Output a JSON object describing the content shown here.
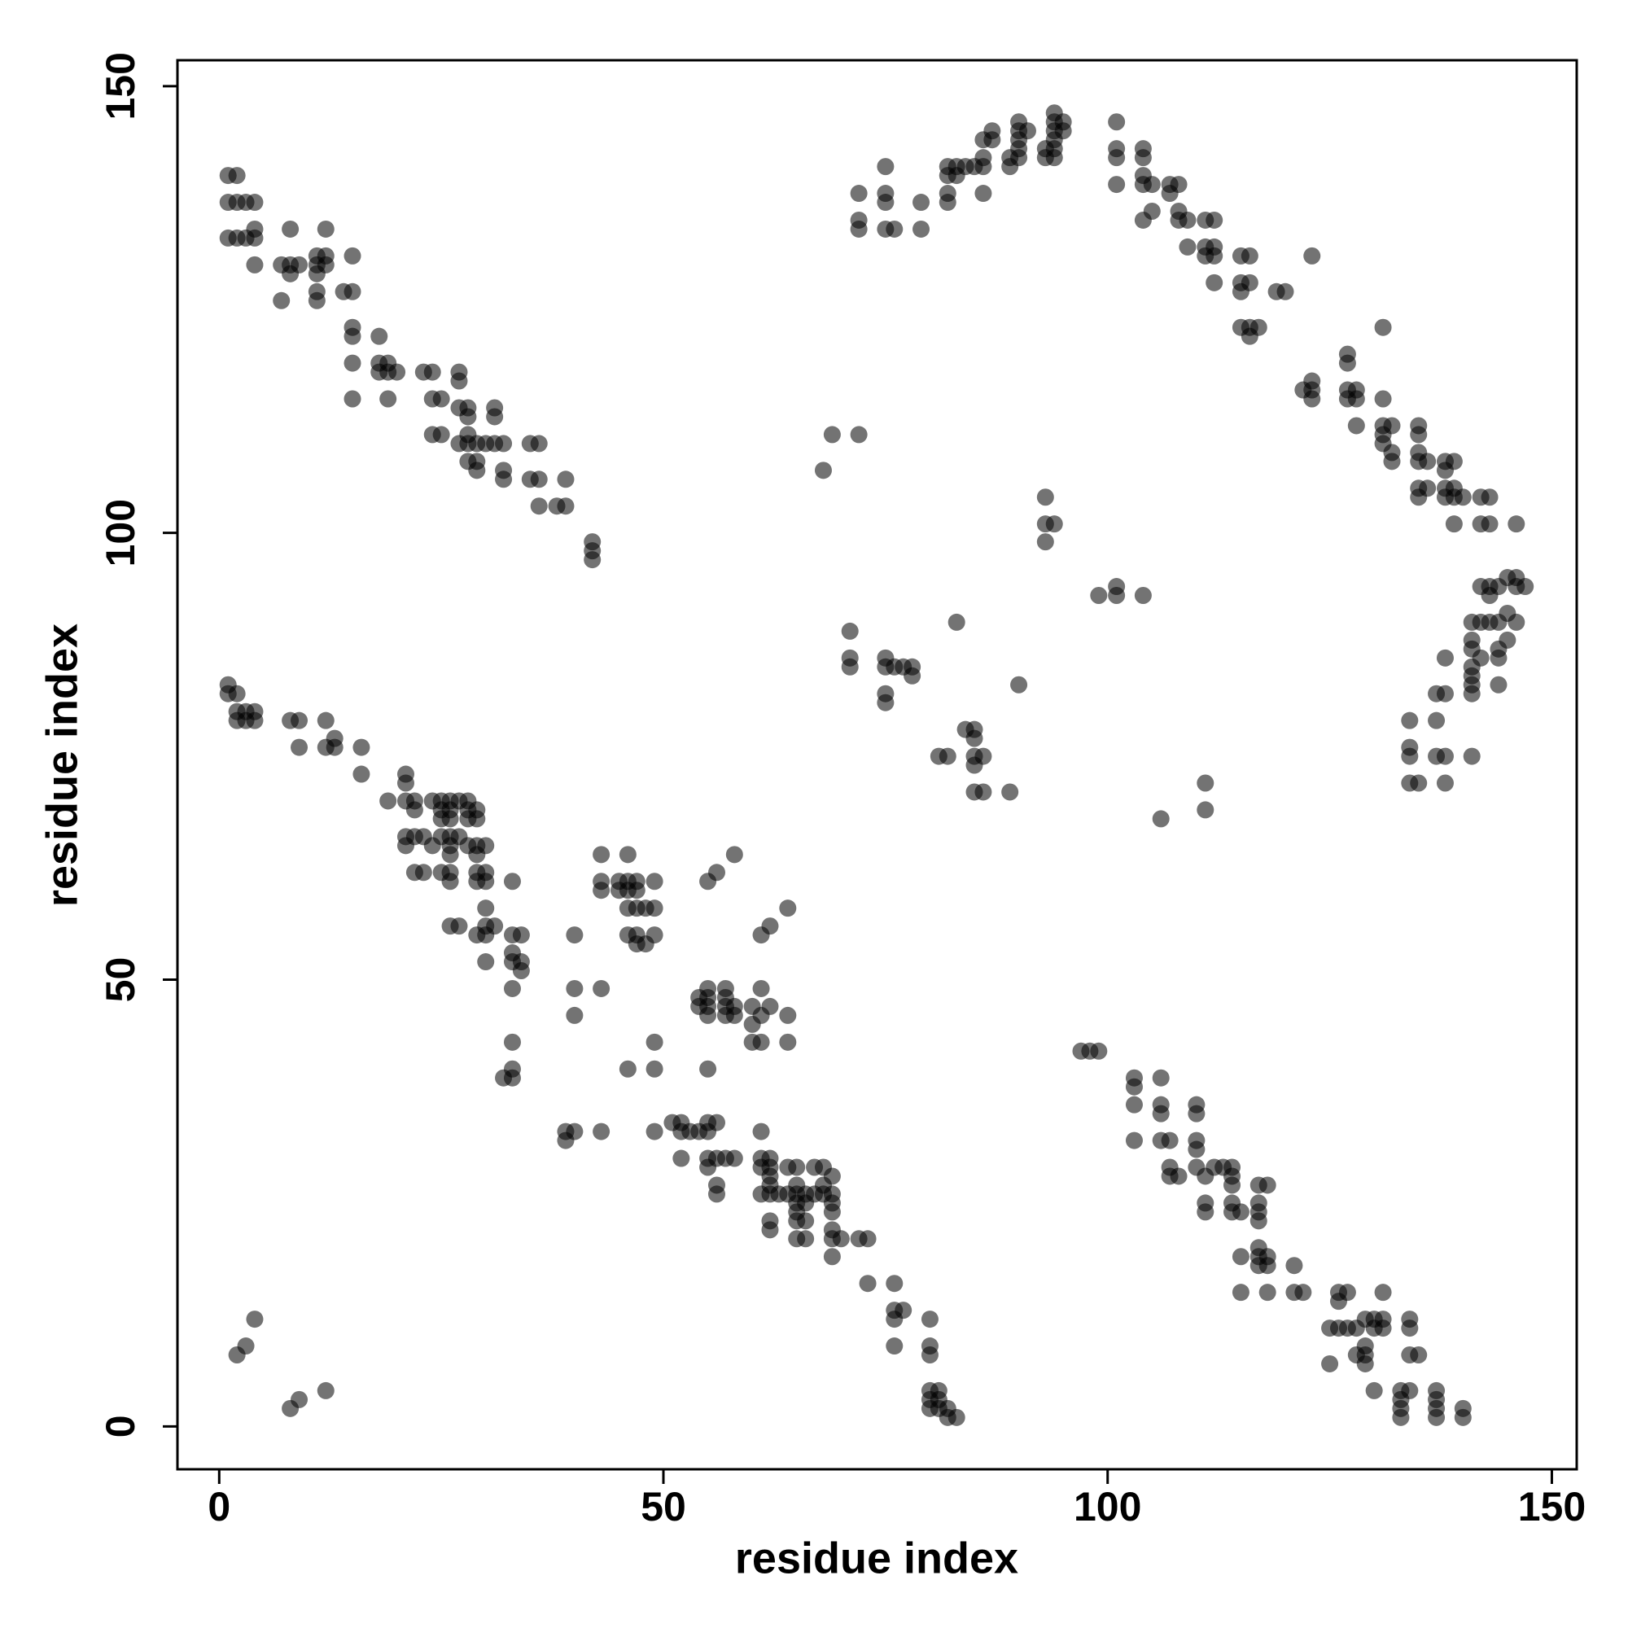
{
  "chart_data": {
    "type": "scatter",
    "xlabel": "residue index",
    "ylabel": "residue index",
    "xlim": [
      -4.7,
      152.8
    ],
    "ylim": [
      -4.8,
      152.9
    ],
    "xticks": [
      0,
      50,
      100,
      150
    ],
    "yticks": [
      0,
      50,
      100,
      150
    ],
    "color": "#000000",
    "marker_opacity": 0.55,
    "x": [
      1,
      2,
      1,
      2,
      3,
      4,
      1,
      2,
      3,
      4,
      4,
      8,
      12,
      4,
      7,
      8,
      9,
      11,
      12,
      11,
      12,
      15,
      8,
      11,
      11,
      14,
      15,
      7,
      11,
      15,
      15,
      18,
      15,
      18,
      19,
      18,
      19,
      20,
      23,
      24,
      27,
      27,
      15,
      19,
      24,
      25,
      27,
      28,
      31,
      28,
      31,
      24,
      25,
      28,
      27,
      28,
      29,
      30,
      31,
      32,
      35,
      36,
      28,
      29,
      29,
      32,
      32,
      35,
      36,
      39,
      36,
      38,
      39,
      42,
      42,
      42,
      1,
      1,
      2,
      2,
      3,
      4,
      2,
      3,
      4,
      8,
      9,
      12,
      9,
      12,
      13,
      16,
      13,
      16,
      21,
      21,
      19,
      21,
      22,
      24,
      25,
      26,
      27,
      28,
      22,
      25,
      26,
      28,
      29,
      25,
      26,
      28,
      29,
      21,
      22,
      23,
      25,
      26,
      27,
      21,
      24,
      26,
      28,
      29,
      30,
      26,
      29,
      22,
      23,
      25,
      26,
      29,
      30,
      26,
      29,
      30,
      33,
      30,
      26,
      27,
      30,
      31,
      29,
      30,
      33,
      34,
      33,
      30,
      33,
      34,
      34,
      33,
      33,
      33,
      32,
      33,
      43,
      46,
      58,
      43,
      45,
      46,
      47,
      49,
      55,
      56,
      43,
      45,
      46,
      47,
      46,
      47,
      48,
      49,
      64,
      62,
      40,
      46,
      47,
      49,
      61,
      47,
      48,
      40,
      43,
      55,
      57,
      61,
      54,
      55,
      57,
      54,
      55,
      57,
      58,
      60,
      62,
      40,
      55,
      57,
      58,
      61,
      64,
      60,
      49,
      60,
      61,
      64,
      46,
      49,
      55,
      39,
      40,
      43,
      49,
      52,
      53,
      54,
      55,
      61,
      39,
      51,
      52,
      55,
      56,
      52,
      55,
      56,
      57,
      58,
      61,
      62,
      55,
      61,
      62,
      64,
      65,
      67,
      68,
      62,
      69,
      56,
      62,
      65,
      68,
      56,
      61,
      62,
      63,
      64,
      65,
      66,
      67,
      68,
      69,
      65,
      66,
      69,
      65,
      69,
      62,
      65,
      66,
      62,
      69,
      65,
      66,
      69,
      70,
      72,
      73,
      69,
      73,
      76,
      76,
      77,
      76,
      80,
      76,
      80,
      80,
      80,
      81,
      80,
      81,
      80,
      81,
      82,
      82,
      83,
      4,
      3,
      2,
      9,
      8,
      12,
      101,
      101,
      104,
      101,
      104,
      104,
      101,
      104,
      105,
      107,
      108,
      107,
      105,
      108,
      104,
      108,
      109,
      111,
      112,
      109,
      111,
      112,
      111,
      112,
      115,
      116,
      123,
      112,
      115,
      116,
      115,
      119,
      120,
      115,
      116,
      117,
      131,
      116,
      123,
      122,
      123,
      127,
      128,
      123,
      127,
      128,
      131,
      127,
      127,
      128,
      131,
      132,
      135,
      131,
      135,
      131,
      132,
      135,
      132,
      135,
      136,
      138,
      139,
      138,
      135,
      136,
      138,
      139,
      135,
      138,
      139,
      140,
      142,
      143,
      139,
      142,
      143,
      146,
      142,
      143,
      144,
      146,
      147,
      145,
      146,
      143,
      145,
      141,
      142,
      143,
      144,
      146,
      141,
      145,
      141,
      144,
      138,
      142,
      144,
      141,
      141,
      141,
      144,
      137,
      138,
      141,
      134,
      137,
      134,
      134,
      137,
      138,
      141,
      134,
      135,
      138,
      72,
      75,
      82,
      86,
      72,
      72,
      75,
      76,
      79,
      75,
      82,
      83,
      84,
      85,
      86,
      89,
      75,
      79,
      82,
      82,
      83,
      86,
      87,
      90,
      94,
      86,
      89,
      90,
      93,
      94,
      87,
      90,
      91,
      94,
      95,
      90,
      94,
      95,
      90,
      93,
      94,
      94,
      68,
      69,
      72,
      93,
      93,
      94,
      93,
      99,
      101,
      104,
      101,
      71,
      71,
      75,
      71,
      75,
      76,
      77,
      78,
      78,
      75,
      75,
      83,
      90,
      81,
      82,
      85,
      86,
      84,
      85,
      85,
      85,
      85,
      86,
      89,
      106,
      111,
      111,
      97,
      98,
      99,
      103,
      106,
      103,
      103,
      106,
      110,
      106,
      110,
      103,
      106,
      107,
      110,
      110,
      107,
      110,
      112,
      113,
      114,
      107,
      108,
      111,
      114,
      114,
      117,
      118,
      111,
      114,
      117,
      111,
      114,
      115,
      117,
      117,
      117,
      115,
      117,
      118,
      117,
      118,
      121,
      115,
      118,
      121,
      122,
      126,
      127,
      131,
      126,
      125,
      126,
      127,
      128,
      130,
      131,
      134,
      129,
      130,
      131,
      134,
      129,
      128,
      129,
      134,
      135,
      125,
      129,
      130,
      133,
      134,
      137,
      133,
      137,
      133,
      137,
      140,
      133,
      137,
      140
    ],
    "values": [
      140,
      140,
      137,
      137,
      137,
      137,
      133,
      133,
      133,
      133,
      134,
      134,
      134,
      130,
      130,
      130,
      130,
      130,
      130,
      131,
      131,
      131,
      129,
      129,
      127,
      127,
      127,
      126,
      126,
      123,
      122,
      122,
      119,
      119,
      119,
      118,
      118,
      118,
      118,
      118,
      118,
      117,
      115,
      115,
      115,
      115,
      114,
      114,
      114,
      113,
      113,
      111,
      111,
      111,
      110,
      110,
      110,
      110,
      110,
      110,
      110,
      110,
      108,
      108,
      107,
      107,
      106,
      106,
      106,
      106,
      103,
      103,
      103,
      99,
      98,
      97,
      83,
      82,
      82,
      80,
      80,
      80,
      79,
      79,
      79,
      79,
      79,
      79,
      76,
      76,
      76,
      76,
      77,
      73,
      73,
      72,
      70,
      70,
      70,
      70,
      70,
      70,
      70,
      70,
      69,
      69,
      69,
      69,
      69,
      68,
      68,
      68,
      68,
      66,
      66,
      66,
      66,
      66,
      66,
      65,
      65,
      65,
      65,
      65,
      65,
      64,
      64,
      62,
      62,
      62,
      62,
      62,
      62,
      61,
      61,
      61,
      61,
      58,
      56,
      56,
      56,
      56,
      55,
      55,
      55,
      55,
      53,
      52,
      52,
      52,
      51,
      49,
      43,
      40,
      39,
      39,
      64,
      64,
      64,
      61,
      61,
      61,
      61,
      61,
      61,
      62,
      60,
      60,
      60,
      60,
      58,
      58,
      58,
      58,
      58,
      56,
      55,
      55,
      55,
      55,
      55,
      54,
      54,
      49,
      49,
      49,
      49,
      49,
      48,
      48,
      48,
      47,
      47,
      47,
      47,
      47,
      47,
      46,
      46,
      46,
      46,
      46,
      46,
      45,
      43,
      43,
      43,
      43,
      40,
      40,
      40,
      33,
      33,
      33,
      33,
      33,
      33,
      33,
      33,
      33,
      32,
      34,
      34,
      34,
      34,
      30,
      30,
      30,
      30,
      30,
      30,
      30,
      29,
      29,
      29,
      29,
      29,
      29,
      29,
      28,
      28,
      27,
      27,
      27,
      27,
      26,
      26,
      26,
      26,
      26,
      26,
      26,
      26,
      26,
      26,
      25,
      25,
      25,
      24,
      24,
      23,
      23,
      23,
      22,
      22,
      21,
      21,
      21,
      21,
      21,
      21,
      19,
      16,
      16,
      13,
      13,
      12,
      12,
      9,
      9,
      8,
      4,
      4,
      3,
      3,
      2,
      2,
      2,
      1,
      1,
      12,
      9,
      8,
      3,
      2,
      4,
      146,
      143,
      143,
      142,
      142,
      140,
      139,
      139,
      139,
      139,
      139,
      138,
      136,
      136,
      135,
      135,
      135,
      135,
      135,
      132,
      132,
      132,
      131,
      131,
      131,
      131,
      131,
      128,
      128,
      128,
      127,
      127,
      127,
      123,
      123,
      123,
      123,
      122,
      117,
      116,
      116,
      116,
      116,
      115,
      115,
      115,
      115,
      120,
      119,
      112,
      112,
      112,
      112,
      111,
      111,
      110,
      109,
      109,
      108,
      108,
      108,
      108,
      108,
      107,
      105,
      105,
      105,
      105,
      104,
      104,
      104,
      104,
      104,
      104,
      101,
      101,
      101,
      101,
      94,
      94,
      94,
      94,
      94,
      95,
      95,
      93,
      91,
      90,
      90,
      90,
      90,
      90,
      88,
      88,
      87,
      87,
      86,
      86,
      86,
      85,
      84,
      83,
      83,
      82,
      82,
      82,
      79,
      79,
      76,
      75,
      75,
      75,
      75,
      72,
      72,
      72,
      138,
      138,
      138,
      138,
      135,
      134,
      134,
      134,
      134,
      141,
      141,
      141,
      141,
      141,
      141,
      141,
      137,
      137,
      137,
      140,
      140,
      144,
      144,
      144,
      144,
      142,
      142,
      142,
      142,
      142,
      145,
      145,
      145,
      145,
      145,
      146,
      146,
      146,
      143,
      143,
      143,
      147,
      107,
      111,
      111,
      104,
      101,
      101,
      99,
      93,
      93,
      93,
      94,
      89,
      86,
      86,
      85,
      85,
      85,
      85,
      85,
      84,
      82,
      81,
      90,
      83,
      75,
      75,
      75,
      75,
      78,
      78,
      77,
      74,
      71,
      71,
      71,
      68,
      72,
      69,
      42,
      42,
      42,
      39,
      39,
      38,
      36,
      36,
      36,
      35,
      35,
      32,
      32,
      32,
      32,
      31,
      29,
      29,
      29,
      29,
      29,
      28,
      28,
      28,
      28,
      27,
      27,
      27,
      25,
      25,
      25,
      24,
      24,
      24,
      24,
      23,
      20,
      19,
      19,
      19,
      18,
      18,
      18,
      15,
      15,
      15,
      15,
      15,
      15,
      15,
      14,
      11,
      11,
      11,
      11,
      11,
      11,
      11,
      12,
      12,
      12,
      12,
      9,
      8,
      8,
      8,
      8,
      7,
      7,
      4,
      4,
      4,
      4,
      3,
      3,
      2,
      2,
      2,
      1,
      1,
      1
    ]
  }
}
